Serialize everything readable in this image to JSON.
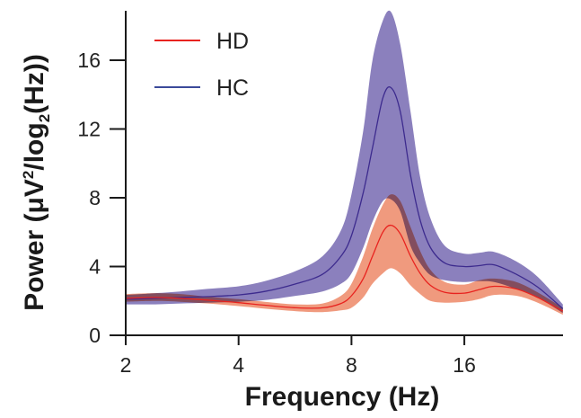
{
  "chart_data": {
    "type": "line",
    "title": "",
    "xlabel": "Frequency (Hz)",
    "ylabel": "Power (μV²/log₂(Hz))",
    "ylabel_parts": {
      "main": "Power (μV",
      "sup": "2",
      "mid": "/log",
      "sub": "2",
      "end": "(Hz))"
    },
    "xscale": "log2",
    "xlim": [
      2,
      29.3
    ],
    "ylim": [
      0,
      18.9
    ],
    "xticks": [
      2,
      4,
      8,
      16
    ],
    "xtick_labels": [
      "2",
      "4",
      "8",
      "16"
    ],
    "yticks": [
      0,
      4,
      8,
      12,
      16
    ],
    "ytick_labels": [
      "0",
      "4",
      "8",
      "12",
      "16"
    ],
    "grid": false,
    "legend_position": "top-left",
    "x": [
      2.0,
      2.4,
      2.8,
      3.3,
      4.0,
      4.7,
      5.7,
      6.7,
      7.5,
      8.0,
      8.6,
      9.1,
      9.7,
      10.2,
      10.8,
      11.5,
      12.2,
      13.0,
      14.2,
      16.0,
      17.5,
      19.2,
      22.0,
      25.1,
      29.3
    ],
    "series": [
      {
        "name": "HD",
        "color": "#e8231f",
        "band_color": "#ee8c6c",
        "values": [
          2.15,
          2.2,
          2.15,
          2.05,
          1.9,
          1.75,
          1.6,
          1.6,
          1.85,
          2.3,
          3.3,
          4.6,
          6.0,
          6.4,
          5.9,
          4.6,
          3.6,
          2.9,
          2.5,
          2.45,
          2.65,
          2.85,
          2.7,
          2.2,
          1.4
        ],
        "lower": [
          1.95,
          2.0,
          1.95,
          1.85,
          1.7,
          1.55,
          1.4,
          1.35,
          1.45,
          1.6,
          2.2,
          3.0,
          3.6,
          3.9,
          3.6,
          2.9,
          2.4,
          2.0,
          1.9,
          1.95,
          2.1,
          2.35,
          2.3,
          1.9,
          1.2
        ],
        "upper": [
          2.4,
          2.45,
          2.4,
          2.25,
          2.1,
          1.95,
          1.8,
          1.85,
          2.3,
          3.0,
          4.6,
          6.2,
          7.6,
          8.2,
          7.8,
          6.3,
          4.9,
          3.8,
          3.1,
          2.95,
          3.2,
          3.3,
          3.1,
          2.5,
          1.6
        ]
      },
      {
        "name": "HC",
        "color": "#3d2b8e",
        "band_color": "#8b80bd",
        "values": [
          2.1,
          2.15,
          2.2,
          2.25,
          2.35,
          2.55,
          3.0,
          3.55,
          4.6,
          5.8,
          8.3,
          10.9,
          13.8,
          14.4,
          13.0,
          9.3,
          6.7,
          5.1,
          4.2,
          4.0,
          4.05,
          4.1,
          3.55,
          2.8,
          1.55
        ],
        "lower": [
          1.8,
          1.8,
          1.85,
          1.9,
          1.95,
          2.05,
          2.3,
          2.55,
          3.0,
          3.6,
          5.1,
          6.6,
          7.8,
          7.9,
          7.2,
          5.2,
          4.2,
          3.5,
          3.2,
          3.1,
          3.15,
          3.1,
          2.7,
          2.2,
          1.3
        ],
        "upper": [
          2.35,
          2.45,
          2.55,
          2.7,
          2.85,
          3.15,
          3.75,
          4.6,
          6.1,
          8.2,
          11.9,
          16.0,
          18.3,
          18.8,
          16.9,
          13.0,
          9.2,
          6.8,
          5.2,
          4.75,
          4.8,
          4.85,
          4.3,
          3.4,
          1.8
        ]
      }
    ]
  }
}
